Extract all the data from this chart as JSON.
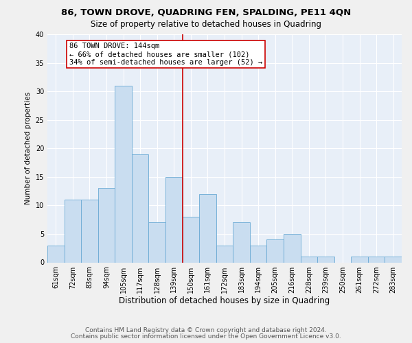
{
  "title1": "86, TOWN DROVE, QUADRING FEN, SPALDING, PE11 4QN",
  "title2": "Size of property relative to detached houses in Quadring",
  "xlabel": "Distribution of detached houses by size in Quadring",
  "ylabel": "Number of detached properties",
  "categories": [
    "61sqm",
    "72sqm",
    "83sqm",
    "94sqm",
    "105sqm",
    "117sqm",
    "128sqm",
    "139sqm",
    "150sqm",
    "161sqm",
    "172sqm",
    "183sqm",
    "194sqm",
    "205sqm",
    "216sqm",
    "228sqm",
    "239sqm",
    "250sqm",
    "261sqm",
    "272sqm",
    "283sqm"
  ],
  "values": [
    3,
    11,
    11,
    13,
    31,
    19,
    7,
    15,
    8,
    12,
    3,
    7,
    3,
    4,
    5,
    1,
    1,
    0,
    1,
    1,
    1
  ],
  "bar_color": "#c9ddf0",
  "bar_edge_color": "#6aaad4",
  "bar_edge_width": 0.6,
  "vline_idx": 7.5,
  "vline_color": "#cc0000",
  "annotation_text": "86 TOWN DROVE: 144sqm\n← 66% of detached houses are smaller (102)\n34% of semi-detached houses are larger (52) →",
  "annotation_box_color": "#ffffff",
  "annotation_box_edge_color": "#cc0000",
  "ylim": [
    0,
    40
  ],
  "yticks": [
    0,
    5,
    10,
    15,
    20,
    25,
    30,
    35,
    40
  ],
  "bg_color": "#e8eff8",
  "grid_color": "#ffffff",
  "footer1": "Contains HM Land Registry data © Crown copyright and database right 2024.",
  "footer2": "Contains public sector information licensed under the Open Government Licence v3.0.",
  "fig_bg": "#f0f0f0",
  "title1_fontsize": 9.5,
  "title2_fontsize": 8.5,
  "xlabel_fontsize": 8.5,
  "ylabel_fontsize": 7.5,
  "tick_fontsize": 7,
  "annotation_fontsize": 7.5,
  "footer_fontsize": 6.5
}
